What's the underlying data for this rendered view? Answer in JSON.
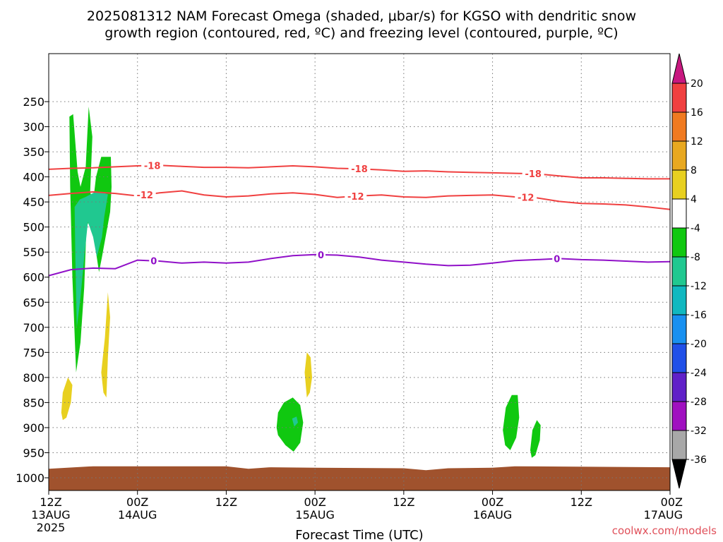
{
  "title_lines": [
    "2025081312 NAM Forecast Omega (shaded, μbar/s) for KGSO with dendritic snow",
    "growth region (contoured, red, ºC) and freezing level (contoured, purple, ºC)"
  ],
  "xlabel": "Forecast Time (UTC)",
  "credit": "coolwx.com/models",
  "chart_data": {
    "type": "area",
    "xlim": [
      0,
      84
    ],
    "ylim": [
      1050,
      170
    ],
    "grid": true,
    "x_ticks": [
      {
        "x": 0,
        "lines": [
          "12Z",
          "13AUG",
          "2025"
        ]
      },
      {
        "x": 12,
        "lines": [
          "00Z",
          "14AUG"
        ]
      },
      {
        "x": 24,
        "lines": [
          "12Z"
        ]
      },
      {
        "x": 36,
        "lines": [
          "00Z",
          "15AUG"
        ]
      },
      {
        "x": 48,
        "lines": [
          "12Z"
        ]
      },
      {
        "x": 60,
        "lines": [
          "00Z",
          "16AUG"
        ]
      },
      {
        "x": 72,
        "lines": [
          "12Z"
        ]
      },
      {
        "x": 84,
        "lines": [
          "00Z",
          "17AUG"
        ]
      }
    ],
    "y_ticks": [
      250,
      300,
      350,
      400,
      450,
      500,
      550,
      600,
      650,
      700,
      750,
      800,
      850,
      900,
      950,
      1000
    ],
    "colorbar": {
      "labels": [
        "20",
        "16",
        "12",
        "8",
        "4",
        "-4",
        "-8",
        "-12",
        "-16",
        "-20",
        "-24",
        "-28",
        "-32",
        "-36"
      ],
      "colors": [
        "#ff1a6a",
        "#f04040",
        "#f07a20",
        "#e8a820",
        "#e8d020",
        "#ffffff",
        "#10c810",
        "#20c890",
        "#10b8c0",
        "#1890f0",
        "#2050e8",
        "#6020c8",
        "#a010c0",
        "#a8a8a8",
        "#000000",
        "#c81880"
      ]
    },
    "series": [
      {
        "name": "-18",
        "color": "#f04040",
        "x": [
          0,
          3,
          6,
          9,
          12,
          15,
          18,
          21,
          24,
          27,
          30,
          33,
          36,
          39,
          42,
          45,
          48,
          51,
          54,
          57,
          60,
          63,
          66,
          69,
          72,
          75,
          78,
          81,
          84
        ],
        "y": [
          385,
          383,
          382,
          380,
          378,
          377,
          379,
          381,
          381,
          382,
          380,
          378,
          380,
          383,
          384,
          386,
          389,
          388,
          390,
          391,
          392,
          393,
          394,
          398,
          402,
          402,
          403,
          404,
          404
        ],
        "labels": [
          {
            "x": 14,
            "text": "-18"
          },
          {
            "x": 42,
            "text": "-18"
          },
          {
            "x": 65.5,
            "text": "-18"
          }
        ]
      },
      {
        "name": "-12",
        "color": "#f04040",
        "x": [
          0,
          3,
          6,
          9,
          12,
          15,
          18,
          21,
          24,
          27,
          30,
          33,
          36,
          39,
          42,
          45,
          48,
          51,
          54,
          57,
          60,
          63,
          66,
          69,
          72,
          75,
          78,
          81,
          84
        ],
        "y": [
          437,
          433,
          430,
          433,
          438,
          432,
          428,
          436,
          440,
          438,
          434,
          432,
          435,
          441,
          438,
          436,
          440,
          441,
          438,
          437,
          436,
          440,
          442,
          449,
          453,
          454,
          456,
          460,
          465
        ],
        "labels": [
          {
            "x": 13,
            "text": "-12"
          },
          {
            "x": 41.5,
            "text": "-12"
          },
          {
            "x": 64.5,
            "text": "-12"
          }
        ]
      },
      {
        "name": "0",
        "color": "#9010c8",
        "x": [
          0,
          3,
          6,
          9,
          12,
          15,
          18,
          21,
          24,
          27,
          30,
          33,
          36,
          39,
          42,
          45,
          48,
          51,
          54,
          57,
          60,
          63,
          66,
          69,
          72,
          75,
          78,
          81,
          84
        ],
        "y": [
          597,
          585,
          582,
          583,
          566,
          568,
          572,
          570,
          572,
          570,
          563,
          557,
          555,
          556,
          560,
          566,
          570,
          574,
          577,
          576,
          572,
          567,
          565,
          563,
          565,
          566,
          568,
          570,
          569
        ],
        "labels": [
          {
            "x": 14.2,
            "text": "0"
          },
          {
            "x": 36.8,
            "text": "0"
          },
          {
            "x": 68.7,
            "text": "0"
          }
        ]
      }
    ],
    "shaded_regions": [
      {
        "level": "-4 to -8",
        "color": "#10c810",
        "points": [
          [
            3.7,
            790
          ],
          [
            3.2,
            600
          ],
          [
            2.9,
            420
          ],
          [
            2.8,
            280
          ],
          [
            3.3,
            275
          ],
          [
            3.9,
            390
          ],
          [
            4.3,
            420
          ],
          [
            5.0,
            380
          ],
          [
            5.4,
            260
          ],
          [
            5.9,
            320
          ],
          [
            5.6,
            430
          ],
          [
            6.0,
            450
          ],
          [
            6.4,
            400
          ],
          [
            7.1,
            360
          ],
          [
            8.4,
            360
          ],
          [
            8.5,
            420
          ],
          [
            8.3,
            470
          ],
          [
            7.2,
            560
          ],
          [
            6.8,
            590
          ],
          [
            5.7,
            480
          ],
          [
            5.1,
            500
          ],
          [
            4.8,
            620
          ],
          [
            4.3,
            730
          ]
        ]
      },
      {
        "level": "-8 to -12",
        "color": "#20c890",
        "points": [
          [
            3.8,
            700
          ],
          [
            3.6,
            560
          ],
          [
            3.5,
            460
          ],
          [
            4.2,
            445
          ],
          [
            5.0,
            440
          ],
          [
            6.3,
            430
          ],
          [
            7.0,
            430
          ],
          [
            8.0,
            435
          ],
          [
            7.5,
            480
          ],
          [
            7.2,
            520
          ],
          [
            6.5,
            560
          ],
          [
            6.0,
            520
          ],
          [
            5.3,
            490
          ],
          [
            4.8,
            560
          ],
          [
            4.3,
            640
          ]
        ]
      },
      {
        "level": "-4 to -8",
        "color": "#10c810",
        "points": [
          [
            30.8,
            900
          ],
          [
            31.0,
            870
          ],
          [
            31.8,
            850
          ],
          [
            33.0,
            840
          ],
          [
            34.0,
            855
          ],
          [
            34.4,
            890
          ],
          [
            34.0,
            930
          ],
          [
            33.1,
            948
          ],
          [
            32.0,
            935
          ],
          [
            31.0,
            915
          ]
        ]
      },
      {
        "level": "-8 to -12",
        "color": "#20c890",
        "points": [
          [
            32.9,
            882
          ],
          [
            33.5,
            878
          ],
          [
            33.7,
            890
          ],
          [
            33.2,
            898
          ]
        ]
      },
      {
        "level": "-4 to -8",
        "color": "#10c810",
        "points": [
          [
            61.4,
            905
          ],
          [
            61.8,
            860
          ],
          [
            62.6,
            835
          ],
          [
            63.4,
            835
          ],
          [
            63.6,
            880
          ],
          [
            63.2,
            920
          ],
          [
            62.4,
            945
          ],
          [
            61.7,
            935
          ]
        ]
      },
      {
        "level": "-4 to -8",
        "color": "#10c810",
        "points": [
          [
            65.1,
            945
          ],
          [
            65.4,
            905
          ],
          [
            66.0,
            885
          ],
          [
            66.5,
            895
          ],
          [
            66.4,
            925
          ],
          [
            65.8,
            955
          ],
          [
            65.3,
            960
          ]
        ]
      },
      {
        "level": "4 to 8",
        "color": "#e8d020",
        "points": [
          [
            1.7,
            870
          ],
          [
            1.9,
            830
          ],
          [
            2.6,
            800
          ],
          [
            3.2,
            815
          ],
          [
            3.0,
            850
          ],
          [
            2.4,
            880
          ],
          [
            1.9,
            885
          ]
        ]
      },
      {
        "level": "4 to 8",
        "color": "#e8d020",
        "points": [
          [
            7.1,
            790
          ],
          [
            7.6,
            720
          ],
          [
            8.0,
            630
          ],
          [
            8.3,
            680
          ],
          [
            8.0,
            760
          ],
          [
            7.8,
            840
          ],
          [
            7.4,
            830
          ]
        ]
      },
      {
        "level": "4 to 8",
        "color": "#e8d020",
        "points": [
          [
            34.6,
            790
          ],
          [
            34.9,
            750
          ],
          [
            35.4,
            760
          ],
          [
            35.6,
            800
          ],
          [
            35.3,
            830
          ],
          [
            34.9,
            840
          ]
        ]
      }
    ],
    "ground": {
      "color": "#a0522d",
      "top": [
        [
          0,
          982
        ],
        [
          6,
          977
        ],
        [
          24,
          977
        ],
        [
          27,
          982
        ],
        [
          30,
          979
        ],
        [
          36,
          980
        ],
        [
          48,
          981
        ],
        [
          51,
          985
        ],
        [
          54,
          981
        ],
        [
          60,
          980
        ],
        [
          63,
          977
        ],
        [
          84,
          979
        ]
      ]
    }
  }
}
